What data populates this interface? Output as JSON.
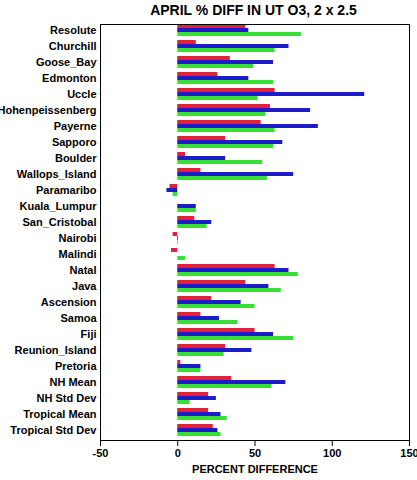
{
  "chart_data": {
    "type": "bar",
    "orientation": "horizontal",
    "title": "APRIL % DIFF IN UT O3, 2 x 2.5",
    "xlabel": "PERCENT DIFFERENCE",
    "categories": [
      "Resolute",
      "Churchill",
      "Goose_Bay",
      "Edmonton",
      "Uccle",
      "Hohenpeissenberg",
      "Payerne",
      "Sapporo",
      "Boulder",
      "Wallops_Island",
      "Paramaribo",
      "Kuala_Lumpur",
      "San_Cristobal",
      "Nairobi",
      "Malindi",
      "Natal",
      "Java",
      "Ascension",
      "Samoa",
      "Fiji",
      "Reunion_Island",
      "Pretoria",
      "NH Mean",
      "NH Std Dev",
      "Tropical Mean",
      "Tropical Std Dev"
    ],
    "series": [
      {
        "color": "#e0203c",
        "values": [
          44,
          12,
          34,
          26,
          63,
          60,
          54,
          31,
          5,
          15,
          -5,
          0,
          11,
          -3,
          -4,
          63,
          44,
          22,
          15,
          50,
          31,
          2,
          35,
          20,
          20,
          23
        ]
      },
      {
        "color": "#1c1ccc",
        "values": [
          46,
          72,
          62,
          46,
          121,
          86,
          91,
          68,
          31,
          75,
          -7,
          12,
          22,
          0.5,
          0,
          72,
          59,
          41,
          27,
          62,
          48,
          15,
          70,
          25,
          28,
          26
        ]
      },
      {
        "color": "#33e033",
        "values": [
          80,
          63,
          49,
          62,
          52,
          57,
          63,
          62,
          55,
          58,
          -3,
          12,
          19,
          0.5,
          5,
          78,
          67,
          50,
          39,
          75,
          30,
          15,
          61,
          8,
          32,
          28
        ]
      }
    ],
    "xlim": [
      -50,
      150
    ],
    "xticks": [
      -50,
      0,
      50,
      100,
      150
    ]
  }
}
